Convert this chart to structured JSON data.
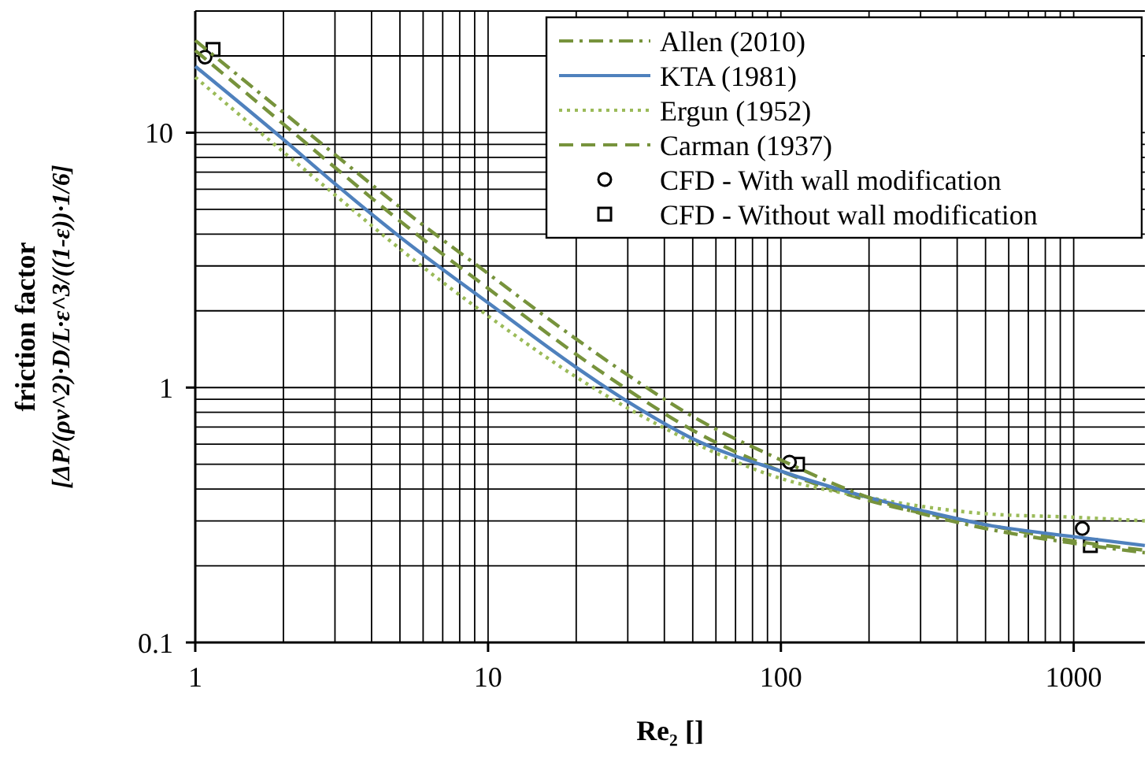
{
  "chart_data": {
    "type": "line",
    "xlabel": "Re₂ []",
    "ylabel": "friction factor\n[ΔP/(ρv^2)·D/L·ε^3/((1-ε))·1/6]",
    "log": "xy",
    "grid": true,
    "legend": "top right",
    "xlim": [
      1,
      1750
    ],
    "ylim": [
      0.1,
      30
    ],
    "xticks": [
      1,
      10,
      100,
      1000
    ],
    "yticks": [
      0.1,
      1,
      10
    ],
    "series": [
      {
        "name": "Allen (2010)",
        "line_style": "dashdot",
        "color": "#77933c",
        "x": [
          1,
          2,
          3,
          5,
          10,
          20,
          30,
          50,
          100,
          200,
          500,
          1000,
          1750
        ],
        "values": [
          23,
          12,
          8.2,
          5.1,
          2.8,
          1.55,
          1.12,
          0.77,
          0.52,
          0.37,
          0.28,
          0.245,
          0.225
        ]
      },
      {
        "name": "KTA (1981)",
        "line_style": "solid",
        "color": "#4f81bd",
        "x": [
          1,
          2,
          3,
          5,
          10,
          20,
          30,
          50,
          100,
          200,
          300,
          500,
          1000,
          1750
        ],
        "values": [
          18.2,
          9.4,
          6.3,
          3.9,
          2.15,
          1.2,
          0.88,
          0.63,
          0.47,
          0.37,
          0.33,
          0.29,
          0.26,
          0.24
        ]
      },
      {
        "name": "Ergun (1952)",
        "line_style": "dotted",
        "color": "#9bbb59",
        "x": [
          1,
          2,
          3,
          5,
          10,
          20,
          30,
          50,
          100,
          200,
          500,
          1000,
          1750
        ],
        "values": [
          16.5,
          8.4,
          5.7,
          3.5,
          1.91,
          1.1,
          0.83,
          0.61,
          0.44,
          0.37,
          0.32,
          0.31,
          0.3
        ]
      },
      {
        "name": "Carman (1937)",
        "line_style": "dashed",
        "color": "#77933c",
        "x": [
          1,
          2,
          3,
          5,
          10,
          20,
          30,
          50,
          100,
          200,
          500,
          1000,
          1750
        ],
        "values": [
          21,
          10.8,
          7.3,
          4.5,
          2.45,
          1.35,
          0.98,
          0.68,
          0.47,
          0.36,
          0.29,
          0.25,
          0.23
        ]
      },
      {
        "name": "CFD - With wall modification",
        "type": "scatter",
        "marker": "circle",
        "color": "#000000",
        "x": [
          1.08,
          107,
          1070
        ],
        "values": [
          19.8,
          0.51,
          0.28
        ]
      },
      {
        "name": "CFD - Without wall modification",
        "type": "scatter",
        "marker": "square",
        "color": "#000000",
        "x": [
          1.15,
          114,
          1140
        ],
        "values": [
          21.2,
          0.5,
          0.24
        ]
      }
    ]
  }
}
